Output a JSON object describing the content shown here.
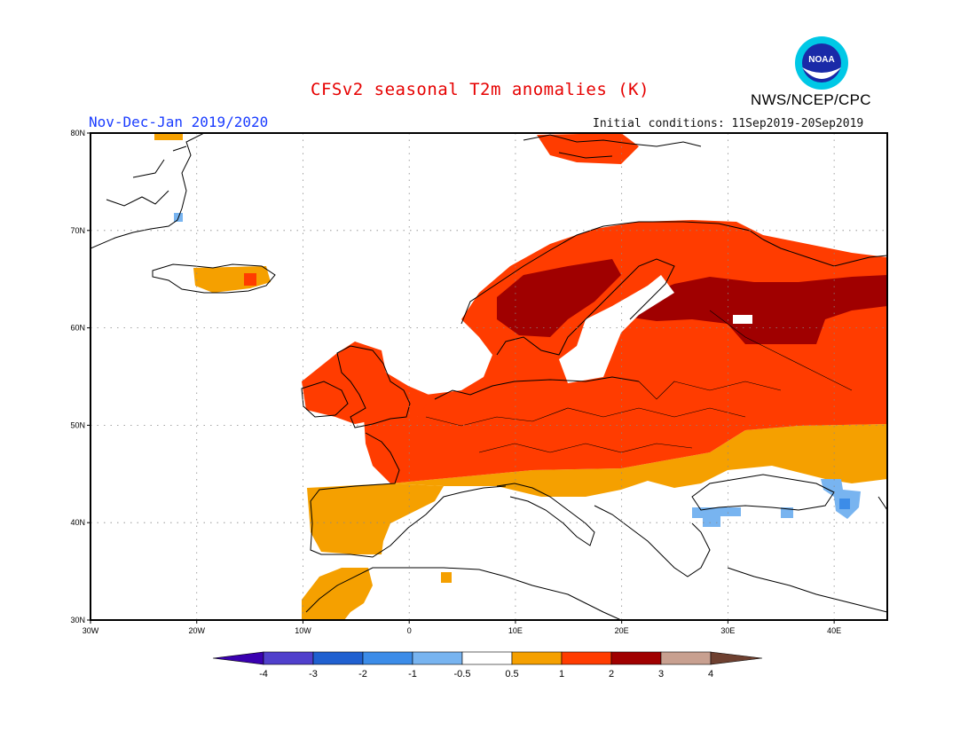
{
  "header": {
    "title": "CFSv2 seasonal T2m anomalies (K)",
    "period": "Nov-Dec-Jan 2019/2020",
    "initial_conditions": "Initial conditions: 11Sep2019-20Sep2019",
    "agency": "NWS/NCEP/CPC",
    "logo_text": "NOAA"
  },
  "axes": {
    "lon_labels": [
      "30W",
      "20W",
      "10W",
      "0",
      "10E",
      "20E",
      "30E",
      "40E"
    ],
    "lat_labels": [
      "30N",
      "40N",
      "50N",
      "60N",
      "70N",
      "80N"
    ],
    "lon_range": [
      -30,
      45
    ],
    "lat_range": [
      30,
      80
    ],
    "grid": "dotted"
  },
  "colorbar": {
    "tick_labels": [
      "-4",
      "-3",
      "-2",
      "-1",
      "-0.5",
      "0.5",
      "1",
      "2",
      "3",
      "4"
    ],
    "colors": [
      "#3a00b0",
      "#5040cc",
      "#2060d0",
      "#3c8ce8",
      "#78b4f0",
      "#ffffff",
      "#f5a000",
      "#ff3c00",
      "#a00000",
      "#c8a090",
      "#6e4030"
    ],
    "unit": "K"
  },
  "icons": {
    "logo": "noaa-logo-icon"
  }
}
